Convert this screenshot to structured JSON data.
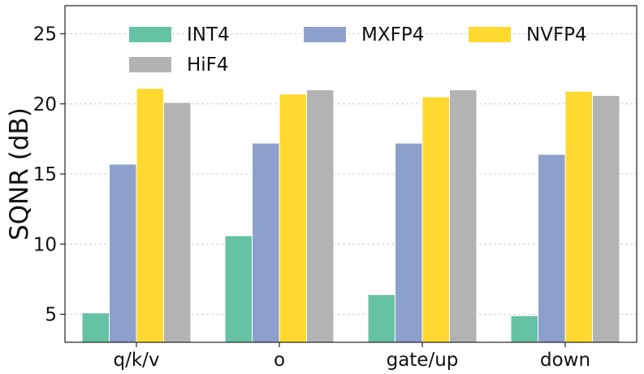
{
  "chart_data": {
    "type": "bar",
    "title": "",
    "xlabel": "",
    "ylabel": "SQNR (dB)",
    "categories": [
      "q/k/v",
      "o",
      "gate/up",
      "down"
    ],
    "series": [
      {
        "name": "INT4",
        "color": "#66c2a5",
        "values": [
          5.1,
          10.6,
          6.4,
          4.9
        ]
      },
      {
        "name": "MXFP4",
        "color": "#8da0cb",
        "values": [
          15.7,
          17.2,
          17.2,
          16.4
        ]
      },
      {
        "name": "NVFP4",
        "color": "#ffd92f",
        "values": [
          21.1,
          20.7,
          20.5,
          20.9
        ]
      },
      {
        "name": "HiF4",
        "color": "#b3b3b3",
        "values": [
          20.1,
          21.0,
          21.0,
          20.6
        ]
      }
    ],
    "ylim": [
      3,
      27
    ],
    "yticks": [
      5,
      10,
      15,
      20,
      25
    ],
    "grid": true,
    "legend_position": "top"
  }
}
